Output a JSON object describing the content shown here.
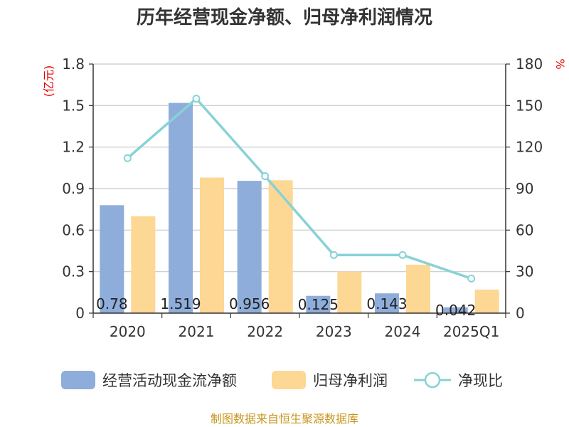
{
  "chart_data": {
    "type": "bar",
    "title": "历年经营现金净额、归母净利润情况",
    "categories": [
      "2020",
      "2021",
      "2022",
      "2023",
      "2024",
      "2025Q1"
    ],
    "series": [
      {
        "name": "经营活动现金流净额",
        "type": "bar",
        "axis": "left",
        "color": "#8eaddb",
        "values": [
          0.78,
          1.519,
          0.956,
          0.125,
          0.143,
          0.042
        ],
        "labels": [
          "0.78",
          "1.519",
          "0.956",
          "0.125",
          "0.143",
          "0.042"
        ]
      },
      {
        "name": "归母净利润",
        "type": "bar",
        "axis": "left",
        "color": "#fdd794",
        "values": [
          0.7,
          0.98,
          0.96,
          0.3,
          0.35,
          0.17
        ]
      },
      {
        "name": "净现比",
        "type": "line",
        "axis": "right",
        "color": "#88d2d6",
        "values": [
          112,
          155,
          99,
          42,
          42,
          25
        ]
      }
    ],
    "left_axis": {
      "unit": "(亿元)",
      "ylim": [
        0,
        1.8
      ],
      "ticks": [
        "0",
        "0.3",
        "0.6",
        "0.9",
        "1.2",
        "1.5",
        "1.8"
      ]
    },
    "right_axis": {
      "unit": "%",
      "ylim": [
        0,
        180
      ],
      "ticks": [
        "0",
        "30",
        "60",
        "90",
        "120",
        "150",
        "180"
      ]
    },
    "grid": true,
    "legend_position": "bottom"
  },
  "source": "制图数据来自恒生聚源数据库"
}
